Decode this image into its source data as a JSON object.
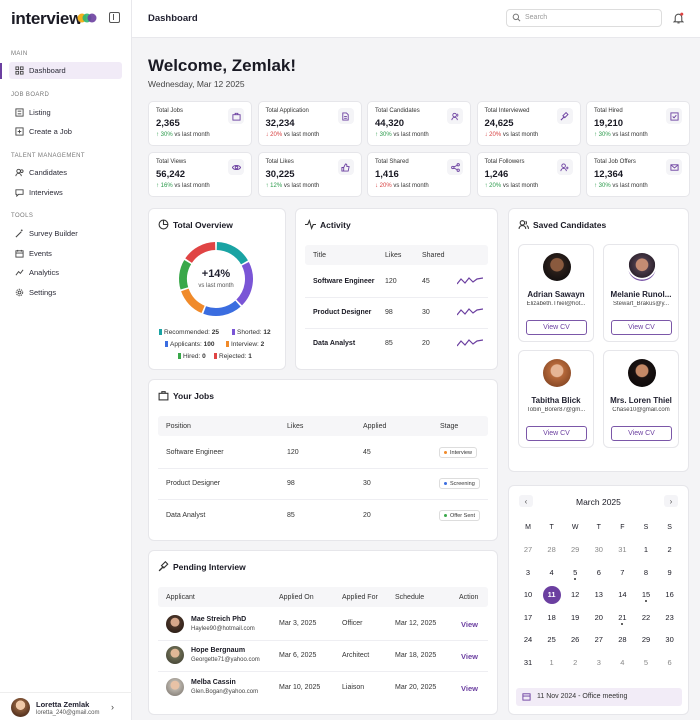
{
  "brand": {
    "name": "interview"
  },
  "sidebar": {
    "sections": [
      {
        "title": "MAIN",
        "items": [
          {
            "label": "Dashboard",
            "icon": "grid-icon"
          }
        ]
      },
      {
        "title": "JOB BOARD",
        "items": [
          {
            "label": "Listing",
            "icon": "list-icon"
          },
          {
            "label": "Create a Job",
            "icon": "plus-square-icon"
          }
        ]
      },
      {
        "title": "TALENT MANAGEMENT",
        "items": [
          {
            "label": "Candidates",
            "icon": "users-icon"
          },
          {
            "label": "Interviews",
            "icon": "chat-icon"
          }
        ]
      },
      {
        "title": "TOOLS",
        "items": [
          {
            "label": "Survey Builder",
            "icon": "wand-icon"
          },
          {
            "label": "Events",
            "icon": "calendar-icon"
          },
          {
            "label": "Analytics",
            "icon": "chart-icon"
          },
          {
            "label": "Settings",
            "icon": "gear-icon"
          }
        ]
      }
    ],
    "user": {
      "name": "Loretta Zemlak",
      "email": "lorettа_240@gmail.com"
    }
  },
  "topbar": {
    "title": "Dashboard",
    "search_placeholder": "Search"
  },
  "welcome": {
    "heading": "Welcome, Zemlak!",
    "date": "Wednesday, Mar 12 2025"
  },
  "stats": [
    {
      "label": "Total Jobs",
      "value": "2,365",
      "change": "30%",
      "dir": "up",
      "suffix": "vs last month",
      "icon": "briefcase-icon"
    },
    {
      "label": "Total Application",
      "value": "32,234",
      "change": "20%",
      "dir": "down",
      "suffix": "vs last month",
      "icon": "document-icon"
    },
    {
      "label": "Total Candidates",
      "value": "44,320",
      "change": "30%",
      "dir": "up",
      "suffix": "vs last month",
      "icon": "users-icon"
    },
    {
      "label": "Total Interviewed",
      "value": "24,625",
      "change": "20%",
      "dir": "down",
      "suffix": "vs last month",
      "icon": "gavel-icon"
    },
    {
      "label": "Total Hired",
      "value": "19,210",
      "change": "30%",
      "dir": "up",
      "suffix": "vs last month",
      "icon": "check-square-icon"
    },
    {
      "label": "Total Views",
      "value": "56,242",
      "change": "16%",
      "dir": "up",
      "suffix": "vs last month",
      "icon": "eye-icon"
    },
    {
      "label": "Total Likes",
      "value": "30,225",
      "change": "12%",
      "dir": "up",
      "suffix": "vs last month",
      "icon": "thumbs-up-icon"
    },
    {
      "label": "Total Shared",
      "value": "1,416",
      "change": "20%",
      "dir": "down",
      "suffix": "vs last month",
      "icon": "share-icon"
    },
    {
      "label": "Total Followers",
      "value": "1,246",
      "change": "20%",
      "dir": "up",
      "suffix": "vs last month",
      "icon": "user-plus-icon"
    },
    {
      "label": "Total Job Offers",
      "value": "12,364",
      "change": "30%",
      "dir": "up",
      "suffix": "vs last month",
      "icon": "mail-icon"
    }
  ],
  "overview": {
    "title": "Total Overview",
    "center_value": "+14%",
    "center_sub": "vs last month",
    "legend": [
      {
        "label": "Recommended:",
        "value": "25",
        "color": "#1aa3a3"
      },
      {
        "label": "Shorted:",
        "value": "12",
        "color": "#7a55d6"
      },
      {
        "label": "Applicants:",
        "value": "100",
        "color": "#3b6de0"
      },
      {
        "label": "Interview:",
        "value": "2",
        "color": "#f08a2a"
      },
      {
        "label": "Hired:",
        "value": "0",
        "color": "#3aa84a"
      },
      {
        "label": "Rejected:",
        "value": "1",
        "color": "#e04444"
      }
    ],
    "segments": [
      {
        "name": "Recommended",
        "share": 0.17,
        "color": "#1aa3a3"
      },
      {
        "name": "Shorted",
        "share": 0.21,
        "color": "#7a55d6"
      },
      {
        "name": "Applicants",
        "share": 0.18,
        "color": "#3b6de0"
      },
      {
        "name": "Interview",
        "share": 0.14,
        "color": "#f08a2a"
      },
      {
        "name": "Hired",
        "share": 0.14,
        "color": "#3aa84a"
      },
      {
        "name": "Rejected",
        "share": 0.16,
        "color": "#e04444"
      }
    ]
  },
  "activity": {
    "title": "Activity",
    "columns": [
      "Title",
      "Likes",
      "Shared"
    ],
    "rows": [
      {
        "title": "Software Engineer",
        "likes": "120",
        "shared": "45"
      },
      {
        "title": "Product Designer",
        "likes": "98",
        "shared": "30"
      },
      {
        "title": "Data Analyst",
        "likes": "85",
        "shared": "20"
      }
    ]
  },
  "jobs": {
    "title": "Your Jobs",
    "columns": [
      "Position",
      "Likes",
      "Applied",
      "Stage"
    ],
    "rows": [
      {
        "position": "Software Engineer",
        "likes": "120",
        "applied": "45",
        "stage": "Interview",
        "stage_color": "#f08a2a"
      },
      {
        "position": "Product Designer",
        "likes": "98",
        "applied": "30",
        "stage": "Screening",
        "stage_color": "#3b6de0"
      },
      {
        "position": "Data Analyst",
        "likes": "85",
        "applied": "20",
        "stage": "Offer Sent",
        "stage_color": "#3aa84a"
      }
    ]
  },
  "pending": {
    "title": "Pending Interview",
    "columns": [
      "Applicant",
      "Applied On",
      "Applied For",
      "Schedule",
      "Action"
    ],
    "rows": [
      {
        "name": "Mae Streich PhD",
        "email": "Haylee90@hotmail.com",
        "applied_on": "Mar 3, 2025",
        "applied_for": "Officer",
        "schedule": "Mar 12, 2025",
        "action": "View"
      },
      {
        "name": "Hope Bergnaum",
        "email": "Georgette71@yahoo.com",
        "applied_on": "Mar 6, 2025",
        "applied_for": "Architect",
        "schedule": "Mar 18, 2025",
        "action": "View"
      },
      {
        "name": "Melba Cassin",
        "email": "Glen.Bogan@yahoo.com",
        "applied_on": "Mar 10, 2025",
        "applied_for": "Liaison",
        "schedule": "Mar 20, 2025",
        "action": "View"
      }
    ]
  },
  "saved": {
    "title": "Saved Candidates",
    "button": "View CV",
    "candidates": [
      {
        "name": "Adrian Sawayn",
        "email": "Elizabeth.Thiel@hot..."
      },
      {
        "name": "Melanie Runol...",
        "email": "Stewart_Brakus@y..."
      },
      {
        "name": "Tabitha Blick",
        "email": "Tobin_Borer87@gm..."
      },
      {
        "name": "Mrs. Loren Thiel",
        "email": "Chase10@gmail.com"
      }
    ]
  },
  "calendar": {
    "month": "March 2025",
    "prev": "‹",
    "next": "›",
    "dow": [
      "M",
      "T",
      "W",
      "T",
      "F",
      "S",
      "S"
    ],
    "weeks": [
      [
        "27",
        "28",
        "29",
        "30",
        "31",
        "1",
        "2"
      ],
      [
        "3",
        "4",
        "5",
        "6",
        "7",
        "8",
        "9"
      ],
      [
        "10",
        "11",
        "12",
        "13",
        "14",
        "15",
        "16"
      ],
      [
        "17",
        "18",
        "19",
        "20",
        "21",
        "22",
        "23"
      ],
      [
        "24",
        "25",
        "26",
        "27",
        "28",
        "29",
        "30"
      ],
      [
        "31",
        "1",
        "2",
        "3",
        "4",
        "5",
        "6"
      ]
    ],
    "selected": "11",
    "event": "11 Nov 2024 - Office meeting"
  }
}
